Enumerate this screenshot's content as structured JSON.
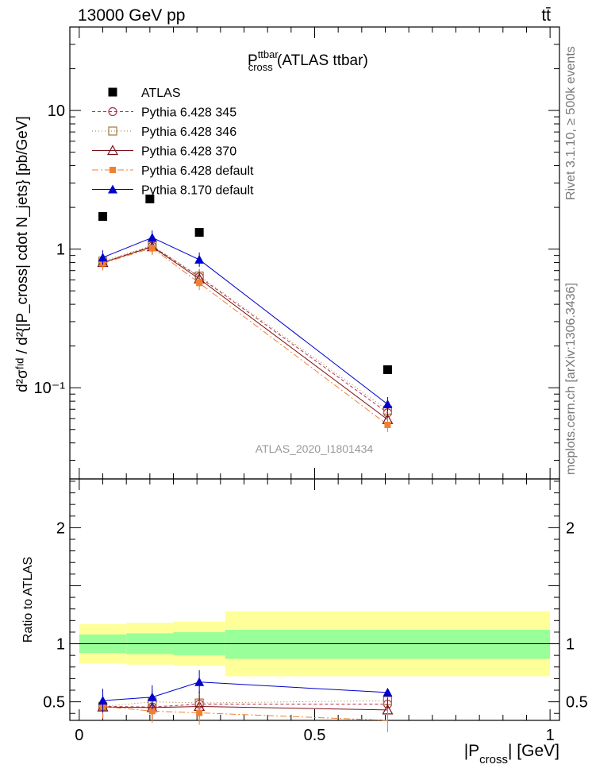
{
  "header": {
    "left": "13000 GeV pp",
    "right": "tt̄"
  },
  "side": {
    "rivet": "Rivet 3.1.10, ≥ 500k events",
    "mcplots": "mcplots.cern.ch [arXiv:1306.3436]"
  },
  "watermark": "ATLAS_2020_I1801434",
  "main_title": {
    "base": "P",
    "sup": "ttbar",
    "sub": "cross",
    "suffix": " (ATLAS ttbar)"
  },
  "ylabel_main": "d²σᶠᶦᵈ / d²{|P_cross| cdot N_jets} [pb/GeV]",
  "ylabel_ratio": "Ratio to ATLAS",
  "xlabel": {
    "base": "|P",
    "sub": "cross",
    "suffix": "| [GeV]"
  },
  "colors": {
    "atlas": "#000000",
    "p345": "#b2314a",
    "p346": "#a0783c",
    "p370": "#7a1018",
    "p6def": "#f08030",
    "p8": "#0000cc",
    "band_inner": "#99ff99",
    "band_outer": "#ffff99"
  },
  "chart_data": [
    {
      "type": "scatter",
      "yscale": "log",
      "xlim": [
        -0.02,
        1.02
      ],
      "ylim": [
        0.022,
        40
      ],
      "yticks": [
        {
          "v": 10,
          "label": "10"
        },
        {
          "v": 1,
          "label": "1"
        },
        {
          "v": 0.1,
          "label": "10⁻¹"
        }
      ],
      "bins": [
        [
          0.0,
          0.1
        ],
        [
          0.1,
          0.2
        ],
        [
          0.2,
          0.31
        ],
        [
          0.31,
          1.0
        ]
      ],
      "series": [
        {
          "name": "ATLAS",
          "x": [
            0.05,
            0.15,
            0.255,
            0.655
          ],
          "y": [
            1.72,
            2.3,
            1.32,
            0.135
          ]
        },
        {
          "name": "Pythia 6.428 345",
          "x": [
            0.05,
            0.155,
            0.255,
            0.655
          ],
          "y": [
            0.8,
            1.05,
            0.63,
            0.066
          ]
        },
        {
          "name": "Pythia 6.428 346",
          "x": [
            0.05,
            0.155,
            0.255,
            0.655
          ],
          "y": [
            0.82,
            1.06,
            0.64,
            0.069
          ]
        },
        {
          "name": "Pythia 6.428 370",
          "x": [
            0.05,
            0.155,
            0.255,
            0.655
          ],
          "y": [
            0.8,
            1.04,
            0.61,
            0.059
          ]
        },
        {
          "name": "Pythia 6.428 default",
          "x": [
            0.05,
            0.155,
            0.255,
            0.655
          ],
          "y": [
            0.79,
            1.02,
            0.57,
            0.054
          ]
        },
        {
          "name": "Pythia 8.170 default",
          "x": [
            0.05,
            0.155,
            0.255,
            0.655
          ],
          "y": [
            0.87,
            1.21,
            0.84,
            0.076
          ]
        }
      ]
    },
    {
      "type": "line",
      "xlim": [
        -0.02,
        1.02
      ],
      "ylim": [
        0.34,
        2.42
      ],
      "yticks": [
        {
          "v": 2,
          "label": "2"
        },
        {
          "v": 1,
          "label": "1"
        },
        {
          "v": 0.5,
          "label": "0.5"
        }
      ],
      "xticks": [
        {
          "v": 0,
          "label": "0"
        },
        {
          "v": 0.5,
          "label": "0.5"
        },
        {
          "v": 1,
          "label": "1"
        }
      ],
      "bands": {
        "edges": [
          0.0,
          0.1,
          0.2,
          0.31,
          1.0
        ],
        "inner": [
          [
            0.92,
            1.08
          ],
          [
            0.91,
            1.09
          ],
          [
            0.9,
            1.1
          ],
          [
            0.87,
            1.12
          ]
        ],
        "outer": [
          [
            0.83,
            1.17
          ],
          [
            0.82,
            1.18
          ],
          [
            0.81,
            1.19
          ],
          [
            0.72,
            1.28
          ]
        ]
      },
      "series": [
        {
          "name": "Pythia 6.428 345",
          "x": [
            0.05,
            0.155,
            0.255,
            0.655
          ],
          "y": [
            0.46,
            0.455,
            0.48,
            0.48
          ]
        },
        {
          "name": "Pythia 6.428 346",
          "x": [
            0.05,
            0.155,
            0.255,
            0.655
          ],
          "y": [
            0.46,
            0.5,
            0.49,
            0.51
          ]
        },
        {
          "name": "Pythia 6.428 370",
          "x": [
            0.05,
            0.155,
            0.255,
            0.655
          ],
          "y": [
            0.455,
            0.45,
            0.46,
            0.43
          ]
        },
        {
          "name": "Pythia 6.428 default",
          "x": [
            0.05,
            0.155,
            0.255,
            0.655
          ],
          "y": [
            0.46,
            0.42,
            0.405,
            0.34
          ]
        },
        {
          "name": "Pythia 8.170 default",
          "x": [
            0.05,
            0.155,
            0.255,
            0.655
          ],
          "y": [
            0.51,
            0.54,
            0.67,
            0.58
          ]
        }
      ]
    }
  ]
}
